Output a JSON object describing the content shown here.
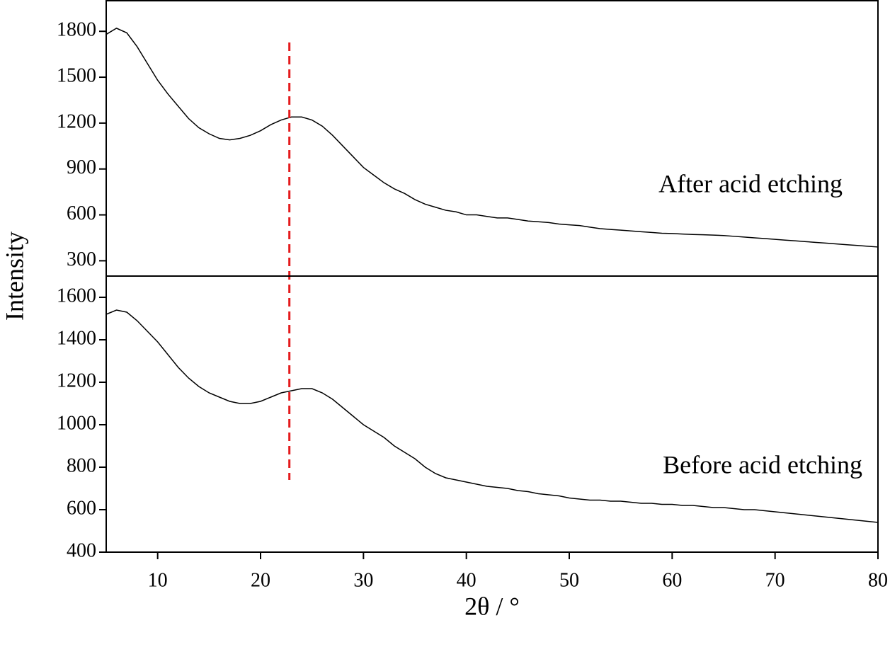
{
  "chart_data": [
    {
      "type": "line",
      "ylabel": "Intensity",
      "annotation": "After acid etching",
      "vline": {
        "x": 22.8,
        "color": "#e41a1c"
      },
      "x": [
        5,
        6,
        7,
        8,
        9,
        10,
        11,
        12,
        13,
        14,
        15,
        16,
        17,
        18,
        19,
        20,
        21,
        22,
        23,
        24,
        25,
        26,
        27,
        28,
        29,
        30,
        31,
        32,
        33,
        34,
        35,
        36,
        37,
        38,
        39,
        40,
        41,
        42,
        43,
        44,
        45,
        46,
        47,
        48,
        49,
        50,
        51,
        52,
        53,
        54,
        55,
        56,
        57,
        58,
        59,
        60,
        61,
        62,
        63,
        64,
        65,
        66,
        67,
        68,
        69,
        70,
        71,
        72,
        73,
        74,
        75,
        76,
        77,
        78,
        79,
        80
      ],
      "series": [
        {
          "color": "#000000",
          "values": [
            1780,
            1820,
            1790,
            1700,
            1590,
            1480,
            1390,
            1310,
            1230,
            1170,
            1130,
            1100,
            1090,
            1100,
            1120,
            1150,
            1190,
            1220,
            1240,
            1240,
            1220,
            1180,
            1120,
            1050,
            980,
            910,
            860,
            810,
            770,
            740,
            700,
            670,
            650,
            630,
            620,
            600,
            600,
            590,
            580,
            580,
            570,
            560,
            555,
            550,
            540,
            535,
            530,
            520,
            510,
            505,
            500,
            495,
            490,
            485,
            480,
            478,
            475,
            472,
            470,
            468,
            465,
            460,
            455,
            450,
            445,
            440,
            435,
            430,
            425,
            420,
            415,
            410,
            405,
            400,
            395,
            390
          ]
        }
      ],
      "ylim": [
        200,
        2000
      ],
      "yticks": [
        300,
        600,
        900,
        1200,
        1500,
        1800
      ]
    },
    {
      "type": "line",
      "xlabel": "2θ / °",
      "annotation": "Before acid etching",
      "x": [
        5,
        6,
        7,
        8,
        9,
        10,
        11,
        12,
        13,
        14,
        15,
        16,
        17,
        18,
        19,
        20,
        21,
        22,
        23,
        24,
        25,
        26,
        27,
        28,
        29,
        30,
        31,
        32,
        33,
        34,
        35,
        36,
        37,
        38,
        39,
        40,
        41,
        42,
        43,
        44,
        45,
        46,
        47,
        48,
        49,
        50,
        51,
        52,
        53,
        54,
        55,
        56,
        57,
        58,
        59,
        60,
        61,
        62,
        63,
        64,
        65,
        66,
        67,
        68,
        69,
        70,
        71,
        72,
        73,
        74,
        75,
        76,
        77,
        78,
        79,
        80
      ],
      "series": [
        {
          "color": "#000000",
          "values": [
            1520,
            1540,
            1530,
            1490,
            1440,
            1390,
            1330,
            1270,
            1220,
            1180,
            1150,
            1130,
            1110,
            1100,
            1100,
            1110,
            1130,
            1150,
            1160,
            1170,
            1170,
            1150,
            1120,
            1080,
            1040,
            1000,
            970,
            940,
            900,
            870,
            840,
            800,
            770,
            750,
            740,
            730,
            720,
            710,
            705,
            700,
            690,
            685,
            675,
            670,
            665,
            655,
            650,
            645,
            645,
            640,
            640,
            635,
            630,
            630,
            625,
            625,
            620,
            620,
            615,
            610,
            610,
            605,
            600,
            600,
            595,
            590,
            585,
            580,
            575,
            570,
            565,
            560,
            555,
            550,
            545,
            540
          ]
        }
      ],
      "xlim": [
        5,
        80
      ],
      "xticks": [
        10,
        20,
        30,
        40,
        50,
        60,
        70,
        80
      ],
      "ylim": [
        400,
        1700
      ],
      "yticks": [
        400,
        600,
        800,
        1000,
        1200,
        1400,
        1600
      ]
    }
  ]
}
